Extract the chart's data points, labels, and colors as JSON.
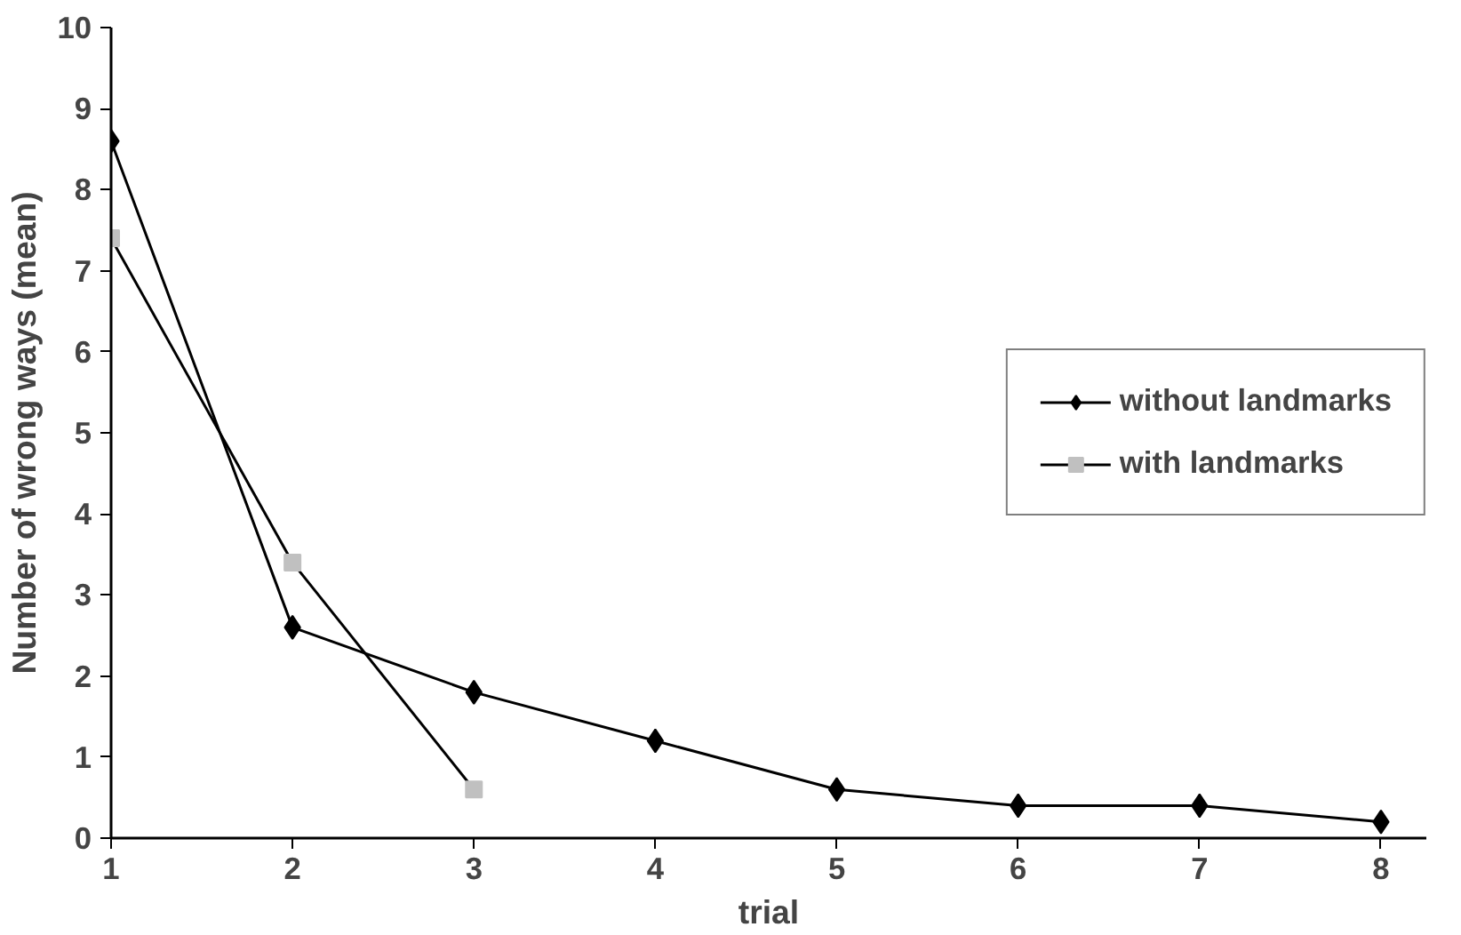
{
  "chart_data": {
    "type": "line",
    "xlabel": "trial",
    "ylabel": "Number of wrong ways (mean)",
    "xlim": [
      1,
      8.25
    ],
    "xticks": [
      1,
      2,
      3,
      4,
      5,
      6,
      7,
      8
    ],
    "ylim": [
      0,
      10
    ],
    "yticks": [
      0,
      1,
      2,
      3,
      4,
      5,
      6,
      7,
      8,
      9,
      10
    ],
    "grid": false,
    "legend": "right",
    "series": [
      {
        "name": "without landmarks",
        "color": "#000000",
        "marker": "diamond",
        "x": [
          1,
          2,
          3,
          4,
          5,
          6,
          7,
          8
        ],
        "values": [
          8.6,
          2.6,
          1.8,
          1.2,
          0.6,
          0.4,
          0.4,
          0.2
        ]
      },
      {
        "name": "with landmarks",
        "color": "#c0c0c0",
        "marker": "square",
        "x": [
          1,
          2,
          3
        ],
        "values": [
          7.4,
          3.4,
          0.6
        ]
      }
    ]
  }
}
